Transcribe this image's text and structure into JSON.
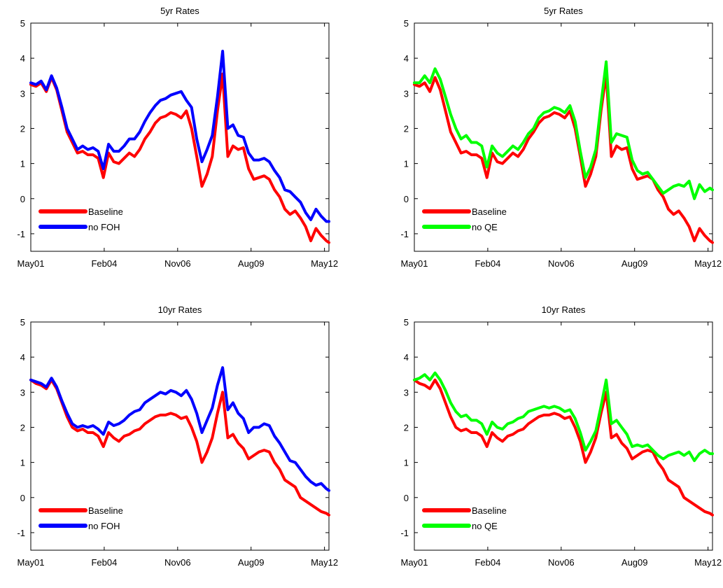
{
  "chart_data": [
    {
      "type": "line",
      "title": "5yr Rates",
      "xticks": [
        "May01",
        "Feb04",
        "Nov06",
        "Aug09",
        "May12"
      ],
      "xlim": [
        0,
        11.5
      ],
      "ylim": [
        -1.5,
        5
      ],
      "yticks": [
        "-1",
        "0",
        "1",
        "2",
        "3",
        "4",
        "5"
      ],
      "legend_position": "bottom-left",
      "series": [
        {
          "name": "Baseline",
          "color": "#ff0000",
          "x": [
            0,
            0.2,
            0.4,
            0.6,
            0.8,
            1.0,
            1.2,
            1.4,
            1.6,
            1.8,
            2.0,
            2.2,
            2.4,
            2.6,
            2.8,
            3.0,
            3.2,
            3.4,
            3.6,
            3.8,
            4.0,
            4.2,
            4.4,
            4.6,
            4.8,
            5.0,
            5.2,
            5.4,
            5.6,
            5.8,
            6.0,
            6.2,
            6.4,
            6.6,
            6.8,
            7.0,
            7.2,
            7.4,
            7.6,
            7.8,
            8.0,
            8.2,
            8.4,
            8.6,
            8.8,
            9.0,
            9.2,
            9.4,
            9.6,
            9.8,
            10.0,
            10.2,
            10.4,
            10.6,
            10.8,
            11.0,
            11.2,
            11.4,
            11.5
          ],
          "y": [
            3.25,
            3.2,
            3.3,
            3.05,
            3.45,
            3.1,
            2.5,
            1.9,
            1.6,
            1.3,
            1.35,
            1.25,
            1.25,
            1.15,
            0.6,
            1.3,
            1.05,
            1.0,
            1.15,
            1.3,
            1.2,
            1.4,
            1.7,
            1.9,
            2.15,
            2.3,
            2.35,
            2.45,
            2.4,
            2.3,
            2.5,
            2.0,
            1.2,
            0.35,
            0.7,
            1.2,
            2.5,
            3.55,
            1.2,
            1.5,
            1.4,
            1.45,
            0.85,
            0.55,
            0.6,
            0.65,
            0.55,
            0.25,
            0.05,
            -0.3,
            -0.45,
            -0.35,
            -0.55,
            -0.8,
            -1.2,
            -0.85,
            -1.05,
            -1.2,
            -1.25
          ]
        },
        {
          "name": "no FOH",
          "color": "#0000ff",
          "x": [
            0,
            0.2,
            0.4,
            0.6,
            0.8,
            1.0,
            1.2,
            1.4,
            1.6,
            1.8,
            2.0,
            2.2,
            2.4,
            2.6,
            2.8,
            3.0,
            3.2,
            3.4,
            3.6,
            3.8,
            4.0,
            4.2,
            4.4,
            4.6,
            4.8,
            5.0,
            5.2,
            5.4,
            5.6,
            5.8,
            6.0,
            6.2,
            6.4,
            6.6,
            6.8,
            7.0,
            7.2,
            7.4,
            7.6,
            7.8,
            8.0,
            8.2,
            8.4,
            8.6,
            8.8,
            9.0,
            9.2,
            9.4,
            9.6,
            9.8,
            10.0,
            10.2,
            10.4,
            10.6,
            10.8,
            11.0,
            11.2,
            11.4,
            11.5
          ],
          "y": [
            3.3,
            3.25,
            3.35,
            3.1,
            3.5,
            3.15,
            2.6,
            2.0,
            1.7,
            1.4,
            1.5,
            1.4,
            1.45,
            1.35,
            0.85,
            1.55,
            1.35,
            1.35,
            1.5,
            1.7,
            1.7,
            1.9,
            2.2,
            2.45,
            2.65,
            2.8,
            2.85,
            2.95,
            3.0,
            3.05,
            2.8,
            2.6,
            1.7,
            1.05,
            1.4,
            1.8,
            2.9,
            4.2,
            2.0,
            2.1,
            1.8,
            1.75,
            1.3,
            1.1,
            1.1,
            1.15,
            1.05,
            0.8,
            0.6,
            0.25,
            0.2,
            0.05,
            -0.1,
            -0.4,
            -0.6,
            -0.3,
            -0.5,
            -0.65,
            -0.65
          ]
        }
      ]
    },
    {
      "type": "line",
      "title": "5yr Rates",
      "xticks": [
        "May01",
        "Feb04",
        "Nov06",
        "Aug09",
        "May12"
      ],
      "xlim": [
        0,
        11.5
      ],
      "ylim": [
        -1.5,
        5
      ],
      "yticks": [
        "-1",
        "0",
        "1",
        "2",
        "3",
        "4",
        "5"
      ],
      "legend_position": "bottom-left",
      "series": [
        {
          "name": "Baseline",
          "color": "#ff0000",
          "x": [
            0,
            0.2,
            0.4,
            0.6,
            0.8,
            1.0,
            1.2,
            1.4,
            1.6,
            1.8,
            2.0,
            2.2,
            2.4,
            2.6,
            2.8,
            3.0,
            3.2,
            3.4,
            3.6,
            3.8,
            4.0,
            4.2,
            4.4,
            4.6,
            4.8,
            5.0,
            5.2,
            5.4,
            5.6,
            5.8,
            6.0,
            6.2,
            6.4,
            6.6,
            6.8,
            7.0,
            7.2,
            7.4,
            7.6,
            7.8,
            8.0,
            8.2,
            8.4,
            8.6,
            8.8,
            9.0,
            9.2,
            9.4,
            9.6,
            9.8,
            10.0,
            10.2,
            10.4,
            10.6,
            10.8,
            11.0,
            11.2,
            11.4,
            11.5
          ],
          "y": [
            3.25,
            3.2,
            3.3,
            3.05,
            3.45,
            3.1,
            2.5,
            1.9,
            1.6,
            1.3,
            1.35,
            1.25,
            1.25,
            1.15,
            0.6,
            1.3,
            1.05,
            1.0,
            1.15,
            1.3,
            1.2,
            1.4,
            1.7,
            1.9,
            2.15,
            2.3,
            2.35,
            2.45,
            2.4,
            2.3,
            2.5,
            2.0,
            1.2,
            0.35,
            0.7,
            1.2,
            2.5,
            3.55,
            1.2,
            1.5,
            1.4,
            1.45,
            0.85,
            0.55,
            0.6,
            0.65,
            0.55,
            0.25,
            0.05,
            -0.3,
            -0.45,
            -0.35,
            -0.55,
            -0.8,
            -1.2,
            -0.85,
            -1.05,
            -1.2,
            -1.25
          ]
        },
        {
          "name": "no QE",
          "color": "#00ff00",
          "x": [
            0,
            0.2,
            0.4,
            0.6,
            0.8,
            1.0,
            1.2,
            1.4,
            1.6,
            1.8,
            2.0,
            2.2,
            2.4,
            2.6,
            2.8,
            3.0,
            3.2,
            3.4,
            3.6,
            3.8,
            4.0,
            4.2,
            4.4,
            4.6,
            4.8,
            5.0,
            5.2,
            5.4,
            5.6,
            5.8,
            6.0,
            6.2,
            6.4,
            6.6,
            6.8,
            7.0,
            7.2,
            7.4,
            7.6,
            7.8,
            8.0,
            8.2,
            8.4,
            8.6,
            8.8,
            9.0,
            9.2,
            9.4,
            9.6,
            9.8,
            10.0,
            10.2,
            10.4,
            10.6,
            10.8,
            11.0,
            11.2,
            11.4,
            11.5
          ],
          "y": [
            3.3,
            3.3,
            3.5,
            3.3,
            3.7,
            3.4,
            2.9,
            2.4,
            2.0,
            1.7,
            1.8,
            1.6,
            1.6,
            1.5,
            0.9,
            1.5,
            1.3,
            1.2,
            1.35,
            1.5,
            1.4,
            1.6,
            1.85,
            2.0,
            2.3,
            2.45,
            2.5,
            2.6,
            2.55,
            2.45,
            2.65,
            2.2,
            1.35,
            0.6,
            0.9,
            1.4,
            2.7,
            3.9,
            1.6,
            1.85,
            1.8,
            1.75,
            1.1,
            0.8,
            0.7,
            0.75,
            0.55,
            0.35,
            0.15,
            0.25,
            0.35,
            0.4,
            0.35,
            0.5,
            0.0,
            0.4,
            0.2,
            0.3,
            0.25
          ]
        }
      ]
    },
    {
      "type": "line",
      "title": "10yr Rates",
      "xticks": [
        "May01",
        "Feb04",
        "Nov06",
        "Aug09",
        "May12"
      ],
      "xlim": [
        0,
        11.5
      ],
      "ylim": [
        -1.5,
        5
      ],
      "yticks": [
        "-1",
        "0",
        "1",
        "2",
        "3",
        "4",
        "5"
      ],
      "legend_position": "bottom-left",
      "series": [
        {
          "name": "Baseline",
          "color": "#ff0000",
          "x": [
            0,
            0.2,
            0.4,
            0.6,
            0.8,
            1.0,
            1.2,
            1.4,
            1.6,
            1.8,
            2.0,
            2.2,
            2.4,
            2.6,
            2.8,
            3.0,
            3.2,
            3.4,
            3.6,
            3.8,
            4.0,
            4.2,
            4.4,
            4.6,
            4.8,
            5.0,
            5.2,
            5.4,
            5.6,
            5.8,
            6.0,
            6.2,
            6.4,
            6.6,
            6.8,
            7.0,
            7.2,
            7.4,
            7.6,
            7.8,
            8.0,
            8.2,
            8.4,
            8.6,
            8.8,
            9.0,
            9.2,
            9.4,
            9.6,
            9.8,
            10.0,
            10.2,
            10.4,
            10.6,
            10.8,
            11.0,
            11.2,
            11.4,
            11.5
          ],
          "y": [
            3.35,
            3.25,
            3.2,
            3.1,
            3.35,
            3.1,
            2.7,
            2.3,
            2.0,
            1.9,
            1.95,
            1.85,
            1.85,
            1.75,
            1.45,
            1.85,
            1.7,
            1.6,
            1.75,
            1.8,
            1.9,
            1.95,
            2.1,
            2.2,
            2.3,
            2.35,
            2.35,
            2.4,
            2.35,
            2.25,
            2.3,
            2.0,
            1.6,
            1.0,
            1.3,
            1.7,
            2.4,
            3.0,
            1.7,
            1.8,
            1.55,
            1.4,
            1.1,
            1.2,
            1.3,
            1.35,
            1.3,
            1.0,
            0.8,
            0.5,
            0.4,
            0.3,
            0.0,
            -0.1,
            -0.2,
            -0.3,
            -0.4,
            -0.45,
            -0.5
          ]
        },
        {
          "name": "no FOH",
          "color": "#0000ff",
          "x": [
            0,
            0.2,
            0.4,
            0.6,
            0.8,
            1.0,
            1.2,
            1.4,
            1.6,
            1.8,
            2.0,
            2.2,
            2.4,
            2.6,
            2.8,
            3.0,
            3.2,
            3.4,
            3.6,
            3.8,
            4.0,
            4.2,
            4.4,
            4.6,
            4.8,
            5.0,
            5.2,
            5.4,
            5.6,
            5.8,
            6.0,
            6.2,
            6.4,
            6.6,
            6.8,
            7.0,
            7.2,
            7.4,
            7.6,
            7.8,
            8.0,
            8.2,
            8.4,
            8.6,
            8.8,
            9.0,
            9.2,
            9.4,
            9.6,
            9.8,
            10.0,
            10.2,
            10.4,
            10.6,
            10.8,
            11.0,
            11.2,
            11.4,
            11.5
          ],
          "y": [
            3.35,
            3.3,
            3.25,
            3.15,
            3.4,
            3.15,
            2.75,
            2.4,
            2.1,
            2.0,
            2.05,
            2.0,
            2.05,
            1.95,
            1.8,
            2.15,
            2.05,
            2.1,
            2.2,
            2.35,
            2.45,
            2.5,
            2.7,
            2.8,
            2.9,
            3.0,
            2.95,
            3.05,
            3.0,
            2.9,
            3.05,
            2.8,
            2.4,
            1.85,
            2.2,
            2.55,
            3.2,
            3.7,
            2.5,
            2.7,
            2.4,
            2.25,
            1.85,
            2.0,
            2.0,
            2.1,
            2.05,
            1.75,
            1.55,
            1.3,
            1.05,
            1.0,
            0.8,
            0.6,
            0.45,
            0.35,
            0.4,
            0.25,
            0.2
          ]
        }
      ]
    },
    {
      "type": "line",
      "title": "10yr Rates",
      "xticks": [
        "May01",
        "Feb04",
        "Nov06",
        "Aug09",
        "May12"
      ],
      "xlim": [
        0,
        11.5
      ],
      "ylim": [
        -1.5,
        5
      ],
      "yticks": [
        "-1",
        "0",
        "1",
        "2",
        "3",
        "4",
        "5"
      ],
      "legend_position": "bottom-left",
      "series": [
        {
          "name": "Baseline",
          "color": "#ff0000",
          "x": [
            0,
            0.2,
            0.4,
            0.6,
            0.8,
            1.0,
            1.2,
            1.4,
            1.6,
            1.8,
            2.0,
            2.2,
            2.4,
            2.6,
            2.8,
            3.0,
            3.2,
            3.4,
            3.6,
            3.8,
            4.0,
            4.2,
            4.4,
            4.6,
            4.8,
            5.0,
            5.2,
            5.4,
            5.6,
            5.8,
            6.0,
            6.2,
            6.4,
            6.6,
            6.8,
            7.0,
            7.2,
            7.4,
            7.6,
            7.8,
            8.0,
            8.2,
            8.4,
            8.6,
            8.8,
            9.0,
            9.2,
            9.4,
            9.6,
            9.8,
            10.0,
            10.2,
            10.4,
            10.6,
            10.8,
            11.0,
            11.2,
            11.4,
            11.5
          ],
          "y": [
            3.35,
            3.25,
            3.2,
            3.1,
            3.35,
            3.1,
            2.7,
            2.3,
            2.0,
            1.9,
            1.95,
            1.85,
            1.85,
            1.75,
            1.45,
            1.85,
            1.7,
            1.6,
            1.75,
            1.8,
            1.9,
            1.95,
            2.1,
            2.2,
            2.3,
            2.35,
            2.35,
            2.4,
            2.35,
            2.25,
            2.3,
            2.0,
            1.6,
            1.0,
            1.3,
            1.7,
            2.4,
            3.0,
            1.7,
            1.8,
            1.55,
            1.4,
            1.1,
            1.2,
            1.3,
            1.35,
            1.3,
            1.0,
            0.8,
            0.5,
            0.4,
            0.3,
            0.0,
            -0.1,
            -0.2,
            -0.3,
            -0.4,
            -0.45,
            -0.5
          ]
        },
        {
          "name": "no QE",
          "color": "#00ff00",
          "x": [
            0,
            0.2,
            0.4,
            0.6,
            0.8,
            1.0,
            1.2,
            1.4,
            1.6,
            1.8,
            2.0,
            2.2,
            2.4,
            2.6,
            2.8,
            3.0,
            3.2,
            3.4,
            3.6,
            3.8,
            4.0,
            4.2,
            4.4,
            4.6,
            4.8,
            5.0,
            5.2,
            5.4,
            5.6,
            5.8,
            6.0,
            6.2,
            6.4,
            6.6,
            6.8,
            7.0,
            7.2,
            7.4,
            7.6,
            7.8,
            8.0,
            8.2,
            8.4,
            8.6,
            8.8,
            9.0,
            9.2,
            9.4,
            9.6,
            9.8,
            10.0,
            10.2,
            10.4,
            10.6,
            10.8,
            11.0,
            11.2,
            11.4,
            11.5
          ],
          "y": [
            3.35,
            3.4,
            3.5,
            3.35,
            3.55,
            3.35,
            3.05,
            2.7,
            2.45,
            2.3,
            2.35,
            2.2,
            2.2,
            2.1,
            1.8,
            2.15,
            2.0,
            1.95,
            2.1,
            2.15,
            2.25,
            2.3,
            2.45,
            2.5,
            2.55,
            2.6,
            2.55,
            2.6,
            2.55,
            2.45,
            2.5,
            2.25,
            1.85,
            1.35,
            1.6,
            1.9,
            2.6,
            3.35,
            2.1,
            2.2,
            2.0,
            1.8,
            1.45,
            1.5,
            1.45,
            1.5,
            1.35,
            1.2,
            1.1,
            1.2,
            1.25,
            1.3,
            1.2,
            1.3,
            1.05,
            1.25,
            1.35,
            1.25,
            1.25
          ]
        }
      ]
    }
  ]
}
